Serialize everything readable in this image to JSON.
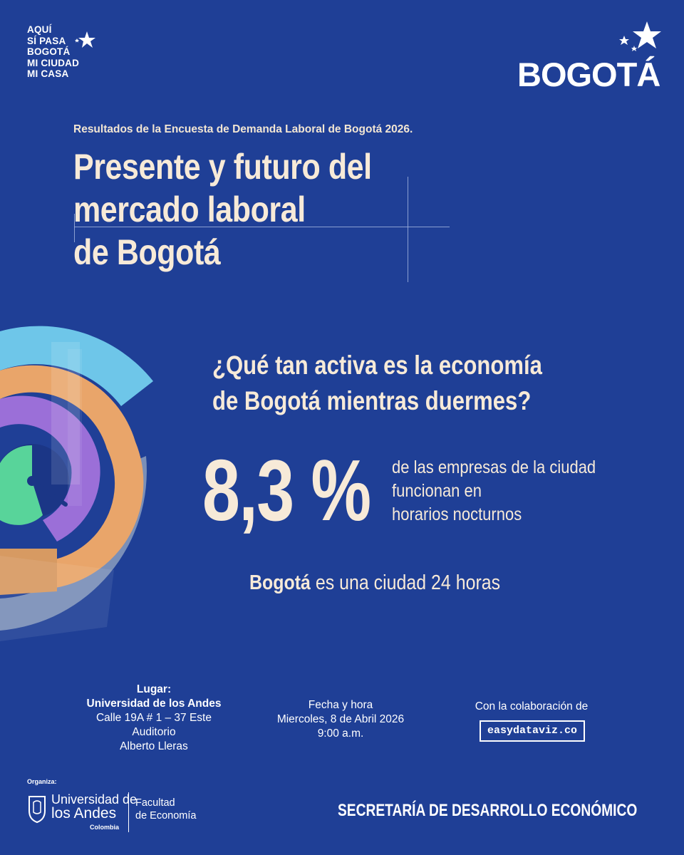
{
  "colors": {
    "background": "#1f3f96",
    "cream": "#f7ead8",
    "white": "#ffffff",
    "ring_cyan": "#6ec6e9",
    "ring_orange": "#e9a56a",
    "ring_purple": "#9b6fd8",
    "ring_green": "#58d49a"
  },
  "header": {
    "slogan_lines": [
      "AQUÍ",
      "SÍ PASA",
      "BOGOTÁ",
      "MI CIUDAD",
      "MI CASA"
    ],
    "logo_text": "BOGOTÁ"
  },
  "headline": {
    "kicker": "Resultados de la Encuesta de Demanda Laboral de Bogotá 2026.",
    "title_lines": [
      "Presente y futuro del",
      "mercado laboral",
      "de Bogotá"
    ]
  },
  "main": {
    "question_lines": [
      "¿Qué tan activa es la economía",
      "de Bogotá mientras duermes?"
    ],
    "stat_value": "8,3 %",
    "stat_desc_lines": [
      "de las empresas de la ciudad",
      "funcionan en",
      "horarios nocturnos"
    ],
    "tagline_bold": "Bogotá",
    "tagline_rest": " es una ciudad 24 horas"
  },
  "event": {
    "place_label": "Lugar:",
    "place_name": "Universidad de los Andes",
    "place_address": "Calle 19A # 1 – 37 Este",
    "place_room_1": "Auditorio",
    "place_room_2": "Alberto Lleras",
    "date_label": "Fecha y hora",
    "date_value": "Miercoles, 8 de Abril 2026",
    "time_value": "9:00 a.m.",
    "collab_label": "Con la colaboración de",
    "collab_name": "easydataviz.co"
  },
  "footer": {
    "organiza": "Organiza:",
    "uni_line1": "Universidad de",
    "uni_line2": "los Andes",
    "uni_country": "Colombia",
    "faculty_line1": "Facultad",
    "faculty_line2": "de Economía",
    "secretaria": "SECRETARÍA DE DESARROLLO ECONÓMICO"
  }
}
